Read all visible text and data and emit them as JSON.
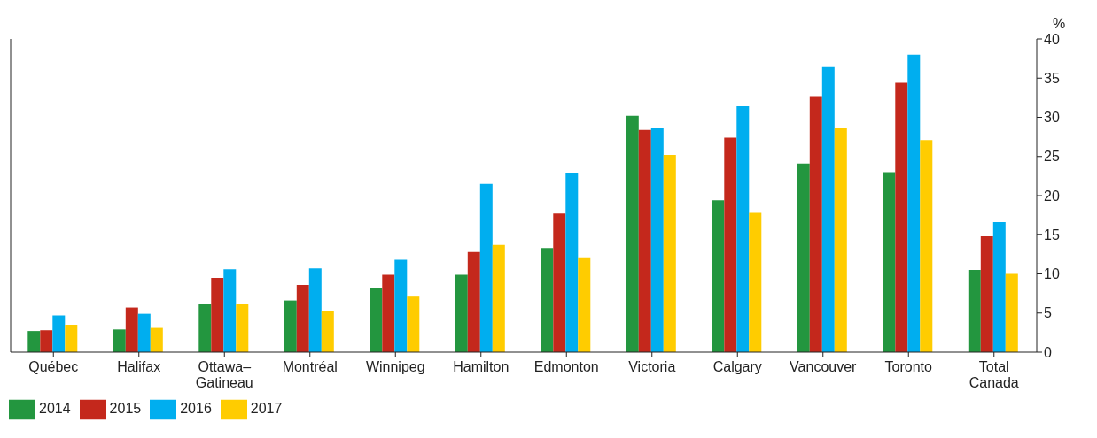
{
  "chart_data": {
    "type": "bar",
    "ylabel": "%",
    "categories": [
      "Québec",
      "Halifax",
      "Ottawa–\nGatineau",
      "Montréal",
      "Winnipeg",
      "Hamilton",
      "Edmonton",
      "Victoria",
      "Calgary",
      "Vancouver",
      "Toronto",
      "Total\nCanada"
    ],
    "series": [
      {
        "name": "2014",
        "color": "#23963f",
        "values": [
          2.7,
          2.9,
          6.1,
          6.6,
          8.2,
          9.9,
          13.3,
          30.2,
          19.4,
          24.1,
          23.0,
          10.5
        ]
      },
      {
        "name": "2015",
        "color": "#c4281c",
        "values": [
          2.8,
          5.7,
          9.5,
          8.6,
          9.9,
          12.8,
          17.7,
          28.4,
          27.4,
          32.6,
          34.4,
          14.8
        ]
      },
      {
        "name": "2016",
        "color": "#00aeef",
        "values": [
          4.7,
          4.9,
          10.6,
          10.7,
          11.8,
          21.5,
          22.9,
          28.6,
          31.4,
          36.4,
          38.0,
          16.6
        ]
      },
      {
        "name": "2017",
        "color": "#ffcc00",
        "values": [
          3.5,
          3.1,
          6.1,
          5.3,
          7.1,
          13.7,
          12.0,
          25.2,
          17.8,
          28.6,
          27.1,
          10.0
        ]
      }
    ],
    "ylim": [
      0,
      40
    ],
    "yticks": [
      0,
      5,
      10,
      15,
      20,
      25,
      30,
      35,
      40
    ],
    "grid": false,
    "legend": "bottom left"
  }
}
